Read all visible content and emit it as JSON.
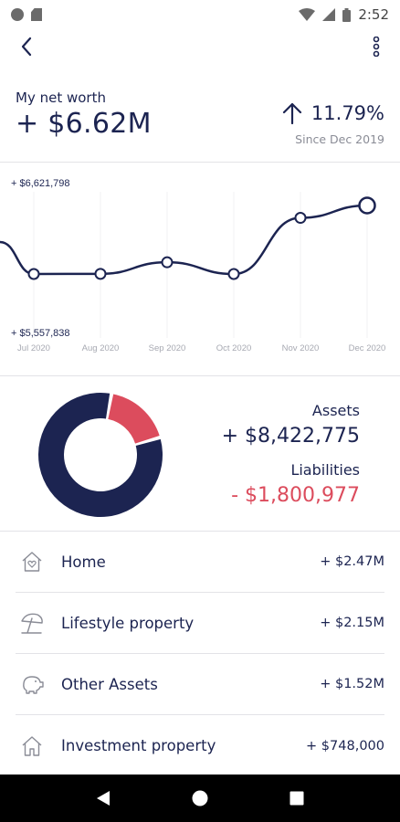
{
  "status_bar": {
    "time": "2:52"
  },
  "header": {
    "label": "My net worth",
    "value": "+ $6.62M",
    "change": "11.79%",
    "since": "Since Dec 2019"
  },
  "colors": {
    "navy": "#1c2451",
    "red": "#dc4c5d",
    "grey": "#8a8c96"
  },
  "chart_data": {
    "type": "line",
    "categories": [
      "Jul 2020",
      "Aug 2020",
      "Sep 2020",
      "Oct 2020",
      "Nov 2020",
      "Dec 2020"
    ],
    "values": [
      5557838,
      5560000,
      5740000,
      5557838,
      6430000,
      6621798
    ],
    "max_label": "+ $6,621,798",
    "min_label": "+ $5,557,838",
    "ylim": [
      5557838,
      6621798
    ]
  },
  "summary": {
    "assets_label": "Assets",
    "assets_value": "+ $8,422,775",
    "assets_amount": 8422775,
    "liabilities_label": "Liabilities",
    "liabilities_value": "- $1,800,977",
    "liabilities_amount": 1800977
  },
  "categories": [
    {
      "label": "Home",
      "value": "+ $2.47M",
      "icon": "home-heart-icon"
    },
    {
      "label": "Lifestyle property",
      "value": "+ $2.15M",
      "icon": "beach-umbrella-icon"
    },
    {
      "label": "Other Assets",
      "value": "+ $1.52M",
      "icon": "piggy-bank-icon"
    },
    {
      "label": "Investment property",
      "value": "+ $748,000",
      "icon": "house-icon"
    }
  ]
}
